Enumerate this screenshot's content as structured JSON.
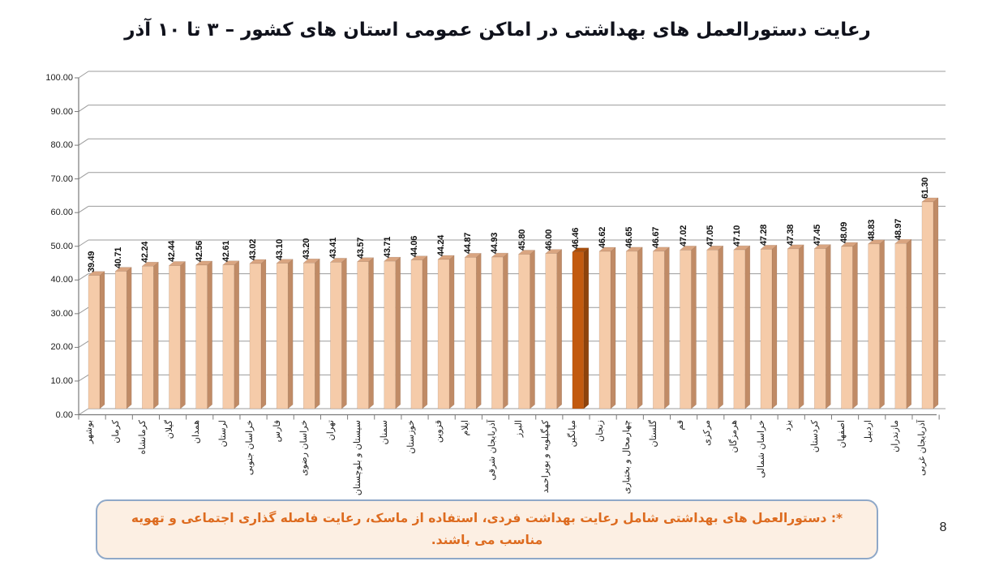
{
  "page": {
    "number": "8",
    "background": "#FFFFFF"
  },
  "title": {
    "text": "رعایت دستورالعمل های بهداشتی در اماکن عمومی استان های کشور  – ۳ تا ۱۰ آذر",
    "color": "#10121C"
  },
  "footnote": {
    "text": "*: دستورالعمل های بهداشتی شامل رعایت بهداشت فردی، استفاده از ماسک، رعایت فاصله گذاری اجتماعی و تهویه مناسب می باشند.",
    "text_color": "#DD6B1F",
    "background": "#FCEFE3",
    "border_color": "#8FA8C8"
  },
  "chart_data": {
    "type": "bar",
    "title": "رعایت دستورالعمل های بهداشتی در اماکن عمومی استان های کشور  – ۳ تا ۱۰ آذر",
    "categories": [
      "بوشهر",
      "کرمان",
      "کرمانشاه",
      "گیلان",
      "همدان",
      "لرستان",
      "خراسان جنوبی",
      "فارس",
      "خراسان رضوی",
      "تهران",
      "سیستان و بلوچستان",
      "سمنان",
      "خوزستان",
      "قزوین",
      "ایلام",
      "آذربایجان شرقی",
      "البرز",
      "کهگیلویه و بویراحمد",
      "میانگین",
      "زنجان",
      "چهارمحال و بختیاری",
      "گلستان",
      "قم",
      "مرکزی",
      "هرمزگان",
      "خراسان شمالی",
      "یزد",
      "کردستان",
      "اصفهان",
      "اردبیل",
      "مازندران",
      "آذربایجان غربی"
    ],
    "values": [
      39.49,
      40.71,
      42.24,
      42.44,
      42.56,
      42.61,
      43.02,
      43.1,
      43.2,
      43.41,
      43.57,
      43.71,
      44.06,
      44.24,
      44.87,
      44.93,
      45.8,
      46.0,
      46.46,
      46.62,
      46.65,
      46.67,
      47.02,
      47.05,
      47.1,
      47.28,
      47.38,
      47.45,
      48.09,
      48.83,
      48.97,
      61.3
    ],
    "highlight_index": 18,
    "highlight_category": "میانگین",
    "xlabel": "",
    "ylabel": "",
    "ylim": [
      0,
      100
    ],
    "y_tick_step": 10,
    "y_tick_labels": [
      "0.00",
      "10.00",
      "20.00",
      "30.00",
      "40.00",
      "50.00",
      "60.00",
      "70.00",
      "80.00",
      "90.00",
      "100.00"
    ],
    "grid": true,
    "legend_position": "none",
    "style_3d": true,
    "bar_front_color": "#F5CBA9",
    "bar_side_color": "#C08B66",
    "bar_top_color": "#D9A581",
    "highlight_front_color": "#C25A0F",
    "highlight_side_color": "#8E430B",
    "highlight_top_color": "#A84E0C",
    "gridline_color": "#9B9B9B",
    "axis_color": "#7A7A7A",
    "value_label_color": "#111111"
  }
}
